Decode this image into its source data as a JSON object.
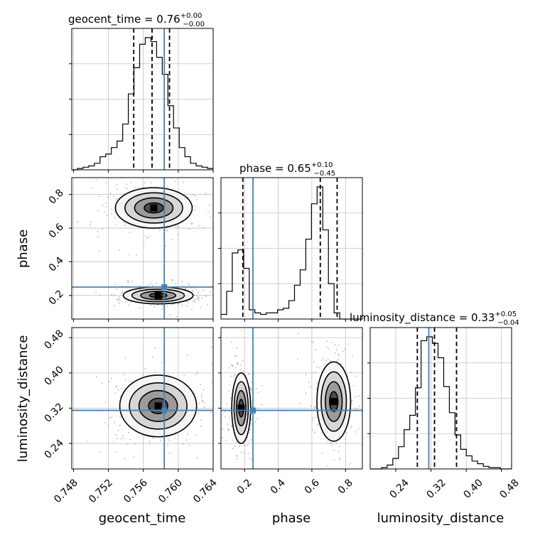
{
  "chart_data": {
    "type": "corner",
    "parameters": [
      "geocent_time",
      "phase",
      "luminosity_distance"
    ],
    "axis_labels": [
      "geocent_time",
      "phase",
      "luminosity_distance"
    ],
    "titles": [
      {
        "param": "geocent_time",
        "text": "geocent_time = 0.76",
        "plus": "+0.00",
        "minus": "−0.00"
      },
      {
        "param": "phase",
        "text": "phase = 0.65",
        "plus": "+0.10",
        "minus": "−0.45"
      },
      {
        "param": "luminosity_distance",
        "text": "luminosity_distance = 0.33",
        "plus": "+0.05",
        "minus": "−0.04"
      }
    ],
    "ranges": {
      "geocent_time": [
        0.7478,
        0.764
      ],
      "phase": [
        0.06,
        0.9
      ],
      "luminosity_distance": [
        0.182,
        0.503
      ]
    },
    "ticks": {
      "geocent_time": [
        "0.748",
        "0.752",
        "0.756",
        "0.760",
        "0.764"
      ],
      "phase": [
        "0.2",
        "0.4",
        "0.6",
        "0.8"
      ],
      "luminosity_distance": [
        "0.24",
        "0.32",
        "0.40",
        "0.48"
      ]
    },
    "truths": {
      "geocent_time": 0.7584,
      "phase": 0.25,
      "luminosity_distance": 0.315
    },
    "quantiles": {
      "geocent_time": [
        0.7549,
        0.757,
        0.759
      ],
      "phase": [
        0.19,
        0.65,
        0.75
      ],
      "luminosity_distance": [
        0.289,
        0.328,
        0.378
      ]
    },
    "histograms": {
      "geocent_time": {
        "bins": [
          0.7478,
          0.764
        ],
        "counts": [
          0,
          1,
          2,
          3,
          5,
          10,
          12,
          17,
          22,
          35,
          58,
          78,
          96,
          101,
          98,
          86,
          73,
          49,
          32,
          17,
          10,
          5,
          3,
          2,
          1
        ]
      },
      "phase": {
        "bins": [
          0.06,
          0.9
        ],
        "counts": [
          3,
          18,
          43,
          45,
          33,
          6,
          4,
          3,
          4,
          4,
          6,
          7,
          12,
          22,
          32,
          52,
          75,
          86,
          58,
          23,
          4,
          0,
          0,
          0,
          0
        ]
      },
      "luminosity_distance": {
        "bins": [
          0.182,
          0.503
        ],
        "counts": [
          0,
          0,
          1,
          3,
          8,
          17,
          30,
          41,
          62,
          98,
          101,
          96,
          85,
          63,
          43,
          26,
          15,
          10,
          6,
          4,
          2,
          1,
          1,
          0,
          0
        ]
      }
    },
    "contours_2d": [
      {
        "x": "geocent_time",
        "y": "phase",
        "modes": [
          {
            "cx": 0.7572,
            "cy": 0.72,
            "sx": 0.0022,
            "sy": 0.06
          },
          {
            "cx": 0.7577,
            "cy": 0.2,
            "sx": 0.002,
            "sy": 0.025
          }
        ]
      },
      {
        "x": "geocent_time",
        "y": "luminosity_distance",
        "modes": [
          {
            "cx": 0.7577,
            "cy": 0.325,
            "sx": 0.0022,
            "sy": 0.035
          }
        ]
      },
      {
        "x": "phase",
        "y": "luminosity_distance",
        "modes": [
          {
            "cx": 0.18,
            "cy": 0.32,
            "sx": 0.028,
            "sy": 0.04
          },
          {
            "cx": 0.73,
            "cy": 0.335,
            "sx": 0.05,
            "sy": 0.045
          }
        ]
      }
    ],
    "colors": {
      "truth": "#4682b4",
      "line": "#000000",
      "grid": "#c0c0c0",
      "points": "#808080"
    }
  }
}
